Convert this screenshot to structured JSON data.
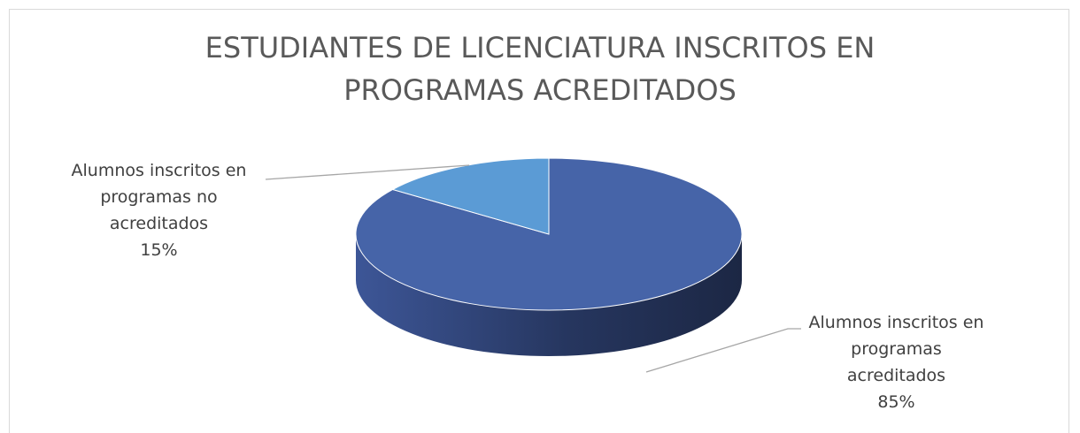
{
  "chart_data": {
    "type": "pie",
    "title": "ESTUDIANTES DE LICENCIATURA INSCRITOS EN PROGRAMAS ACREDITADOS",
    "categories": [
      "Alumnos inscritos en programas acreditados",
      "Alumnos inscritos en programas no acreditados"
    ],
    "values": [
      85,
      15
    ],
    "value_labels": [
      "85%",
      "15%"
    ],
    "colors": [
      "#4664a8",
      "#5b9bd5"
    ]
  }
}
